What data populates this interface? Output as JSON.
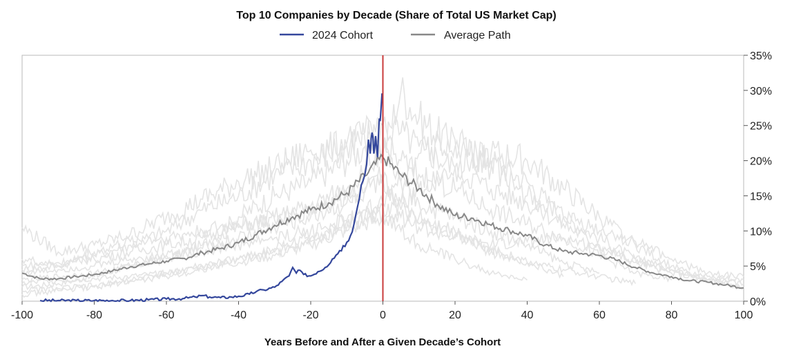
{
  "chart_data": {
    "type": "line",
    "title": "Top 10 Companies by Decade (Share of Total US Market Cap)",
    "xlabel": "Years Before and After a Given Decade’s Cohort",
    "ylabel": "",
    "xlim": [
      -100,
      100
    ],
    "ylim": [
      0,
      35
    ],
    "x_ticks": [
      -100,
      -80,
      -60,
      -40,
      -20,
      0,
      20,
      40,
      60,
      80,
      100
    ],
    "x_tick_labels": [
      "-100",
      "-80",
      "-60",
      "-40",
      "-20",
      "0",
      "20",
      "40",
      "60",
      "80",
      "100"
    ],
    "y_ticks": [
      0,
      5,
      10,
      15,
      20,
      25,
      30,
      35
    ],
    "y_tick_labels": [
      "0%",
      "5%",
      "10%",
      "15%",
      "20%",
      "25%",
      "30%",
      "35%"
    ],
    "y_axis_side": "right",
    "reference_line": {
      "x": 0,
      "color": "#c8393a"
    },
    "legend_position": "top-center",
    "series": [
      {
        "name": "2024 Cohort",
        "color": "#34479c",
        "x": [
          -95,
          -90,
          -85,
          -80,
          -75,
          -70,
          -65,
          -60,
          -55,
          -52,
          -50,
          -48,
          -45,
          -42,
          -40,
          -37,
          -35,
          -33,
          -30,
          -28,
          -26,
          -25,
          -24,
          -23,
          -22,
          -20,
          -18,
          -16,
          -14,
          -12,
          -10,
          -8,
          -7,
          -6,
          -5,
          -4,
          -3.5,
          -3,
          -2.5,
          -2,
          -1.5,
          -1,
          -0.5,
          0
        ],
        "values": [
          0.1,
          0.1,
          0.1,
          0.1,
          0.1,
          0.1,
          0.2,
          0.3,
          0.4,
          0.6,
          0.8,
          0.6,
          0.5,
          0.6,
          0.7,
          1.0,
          1.4,
          1.6,
          2.0,
          2.8,
          3.6,
          4.8,
          4.0,
          4.4,
          3.8,
          3.6,
          4.2,
          4.8,
          6.0,
          7.2,
          8.4,
          11.0,
          13.5,
          16.5,
          18.0,
          23.0,
          21.0,
          24.0,
          21.0,
          23.5,
          20.5,
          26.0,
          27.5,
          29.5
        ]
      },
      {
        "name": "Average Path",
        "color": "#888888",
        "x": [
          -100,
          -95,
          -90,
          -85,
          -80,
          -75,
          -70,
          -65,
          -60,
          -55,
          -50,
          -45,
          -40,
          -35,
          -30,
          -25,
          -20,
          -15,
          -10,
          -5,
          0,
          5,
          10,
          15,
          20,
          25,
          30,
          35,
          40,
          45,
          50,
          55,
          60,
          65,
          70,
          75,
          80,
          85,
          90,
          95,
          100
        ],
        "values": [
          4.0,
          3.2,
          3.2,
          3.5,
          3.8,
          4.3,
          4.9,
          5.3,
          5.7,
          6.1,
          6.9,
          7.5,
          8.3,
          9.5,
          10.8,
          12.0,
          13.0,
          14.0,
          15.4,
          17.8,
          20.5,
          18.0,
          16.0,
          13.8,
          12.2,
          11.8,
          10.8,
          10.1,
          9.3,
          8.0,
          7.1,
          6.8,
          6.5,
          5.8,
          4.8,
          4.0,
          3.5,
          2.9,
          2.7,
          2.3,
          1.9
        ]
      }
    ],
    "background_series_color": "#e4e4e4",
    "background_series": [
      {
        "x": [
          -100,
          -90,
          -80,
          -70,
          -60,
          -50,
          -40,
          -30,
          -20,
          -10,
          -5,
          0,
          5,
          10,
          20,
          30,
          40,
          50,
          60,
          70,
          80,
          90,
          100
        ],
        "values": [
          2.0,
          2.5,
          3.5,
          5.0,
          6.0,
          8.0,
          12.0,
          15.0,
          17.0,
          20.0,
          22.0,
          21.0,
          30.0,
          26.0,
          22.0,
          20.0,
          17.0,
          12.0,
          9.0,
          6.0,
          4.5,
          3.5,
          3.0
        ]
      },
      {
        "x": [
          -100,
          -90,
          -80,
          -70,
          -60,
          -50,
          -40,
          -30,
          -20,
          -10,
          -5,
          0,
          5,
          10,
          20,
          30,
          40,
          50,
          60,
          70,
          80,
          90,
          100
        ],
        "values": [
          4.5,
          5.0,
          6.5,
          8.0,
          10.0,
          13.0,
          15.0,
          18.0,
          20.0,
          22.5,
          23.0,
          25.0,
          24.0,
          22.0,
          19.0,
          16.0,
          14.0,
          11.0,
          8.0,
          5.5,
          4.0,
          3.0,
          2.0
        ]
      },
      {
        "x": [
          -100,
          -90,
          -80,
          -70,
          -60,
          -50,
          -40,
          -30,
          -20,
          -10,
          -5,
          0,
          5,
          10,
          20,
          30,
          40,
          50,
          60,
          70,
          80
        ],
        "values": [
          10.5,
          7.0,
          8.0,
          9.5,
          12.0,
          14.5,
          17.0,
          19.0,
          21.5,
          22.0,
          24.0,
          22.0,
          20.0,
          18.0,
          16.0,
          13.0,
          11.0,
          9.0,
          6.5,
          4.0,
          3.0
        ]
      },
      {
        "x": [
          -100,
          -90,
          -80,
          -70,
          -60,
          -50,
          -40,
          -30,
          -20,
          -10,
          -5,
          0,
          5,
          10,
          20,
          30,
          40,
          50,
          60
        ],
        "values": [
          5.0,
          5.5,
          6.0,
          7.0,
          8.0,
          9.0,
          10.5,
          12.0,
          13.5,
          16.0,
          19.0,
          21.0,
          17.0,
          14.0,
          12.0,
          10.0,
          8.0,
          5.5,
          4.0
        ]
      },
      {
        "x": [
          -100,
          -90,
          -80,
          -70,
          -60,
          -50,
          -40,
          -30,
          -20,
          -10,
          -5,
          0,
          5,
          10,
          20,
          30,
          40,
          50
        ],
        "values": [
          3.0,
          3.5,
          4.0,
          5.0,
          6.5,
          7.5,
          9.0,
          10.5,
          12.0,
          14.0,
          15.5,
          17.0,
          14.0,
          12.0,
          10.0,
          7.5,
          5.5,
          3.5
        ]
      },
      {
        "x": [
          -100,
          -90,
          -80,
          -70,
          -60,
          -50,
          -40,
          -30,
          -20,
          -10,
          -5,
          0,
          5,
          10,
          20,
          30,
          40,
          50,
          60,
          70
        ],
        "values": [
          6.0,
          5.0,
          7.0,
          8.5,
          9.0,
          10.0,
          11.0,
          11.5,
          13.0,
          15.0,
          16.0,
          18.0,
          13.0,
          11.0,
          9.5,
          7.0,
          5.5,
          4.5,
          3.5,
          2.5
        ]
      },
      {
        "x": [
          -100,
          -90,
          -80,
          -70,
          -60,
          -50,
          -40,
          -30,
          -20,
          -10,
          -5,
          0,
          5,
          10,
          20,
          30,
          40,
          50,
          60,
          70,
          80,
          90,
          100
        ],
        "values": [
          1.5,
          1.8,
          2.2,
          2.8,
          3.5,
          4.5,
          6.0,
          7.5,
          9.0,
          11.5,
          13.0,
          13.5,
          12.0,
          10.5,
          9.0,
          8.0,
          8.5,
          9.0,
          7.5,
          6.0,
          4.5,
          3.0,
          2.0
        ]
      },
      {
        "x": [
          -100,
          -90,
          -80,
          -70,
          -60,
          -50,
          -40,
          -30,
          -20,
          -10,
          -5,
          0,
          5,
          10,
          20,
          30,
          40
        ],
        "values": [
          4.0,
          4.5,
          5.0,
          6.0,
          6.5,
          7.0,
          8.0,
          9.0,
          10.0,
          11.5,
          12.0,
          12.5,
          10.0,
          8.0,
          6.0,
          4.0,
          3.0
        ]
      },
      {
        "x": [
          -100,
          -90,
          -80,
          -70,
          -60,
          -50,
          -40,
          -30,
          -20,
          -10,
          -5,
          0,
          5,
          10,
          20,
          30,
          40,
          50,
          60,
          70,
          80,
          90,
          100
        ],
        "values": [
          2.5,
          3.0,
          3.2,
          3.5,
          4.0,
          4.8,
          5.5,
          6.5,
          8.0,
          10.0,
          11.0,
          11.5,
          14.0,
          16.0,
          19.0,
          21.0,
          20.0,
          16.0,
          12.0,
          8.0,
          5.0,
          3.0,
          2.5
        ]
      },
      {
        "x": [
          -100,
          -90,
          -80,
          -70,
          -60,
          -50,
          -40,
          -30,
          -20,
          -10,
          -5,
          0,
          5,
          10,
          20,
          30,
          40,
          50,
          60,
          70,
          80,
          90,
          100
        ],
        "values": [
          1.0,
          1.5,
          2.0,
          3.0,
          4.0,
          5.0,
          6.0,
          7.0,
          8.5,
          10.5,
          12.0,
          14.0,
          17.0,
          21.0,
          23.0,
          19.0,
          15.0,
          12.0,
          10.0,
          8.5,
          6.0,
          4.0,
          3.5
        ]
      }
    ]
  }
}
